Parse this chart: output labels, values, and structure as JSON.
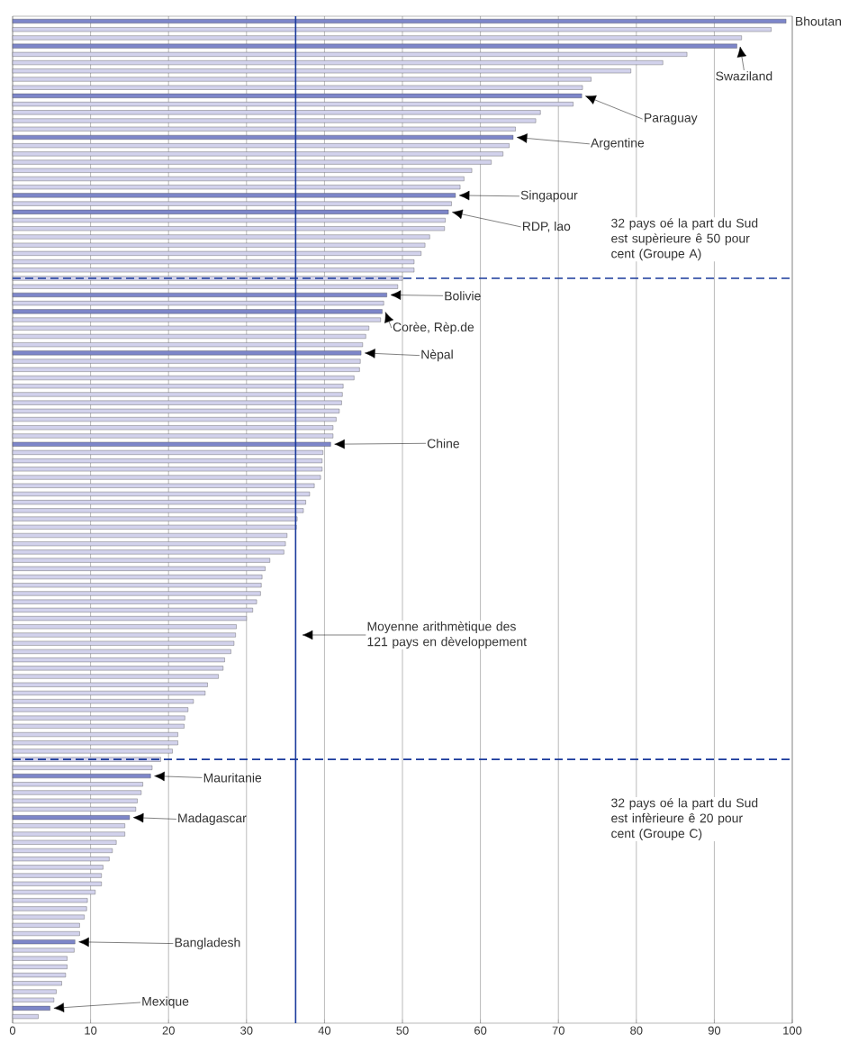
{
  "chart_data": {
    "type": "bar",
    "orientation": "horizontal",
    "tick_labels": "x",
    "grid": "x",
    "categories": [
      null,
      null,
      null,
      null,
      null,
      null,
      null,
      null,
      null,
      null,
      null,
      null,
      null,
      null,
      null,
      null,
      null,
      null,
      null,
      null,
      null,
      null,
      null,
      null,
      null,
      null,
      null,
      null,
      null,
      null,
      null,
      null,
      null,
      null,
      null,
      null,
      null,
      null,
      null,
      null,
      null,
      null,
      null,
      null,
      null,
      null,
      null,
      null,
      null,
      null,
      null,
      null,
      null,
      null,
      null,
      null,
      null,
      null,
      null,
      null,
      null,
      null,
      null,
      null,
      null,
      null,
      null,
      null,
      null,
      null,
      null,
      null,
      null,
      null,
      null,
      null,
      null,
      null,
      null,
      null,
      null,
      null,
      null,
      null,
      null,
      null,
      null,
      null,
      null,
      null,
      null,
      null,
      null,
      null,
      null,
      null,
      null,
      null,
      null,
      null,
      null,
      null,
      null,
      null,
      null,
      null,
      null,
      null,
      null,
      null,
      null,
      null,
      null,
      null,
      null,
      null,
      null,
      null,
      null,
      null,
      null
    ],
    "values": [
      99.2,
      97.3,
      93.5,
      92.9,
      86.5,
      83.4,
      79.3,
      74.2,
      73.1,
      73.0,
      71.9,
      67.7,
      67.1,
      64.5,
      64.2,
      63.7,
      62.9,
      61.4,
      58.9,
      57.9,
      57.4,
      56.8,
      56.3,
      55.9,
      55.5,
      55.4,
      53.5,
      52.9,
      52.4,
      51.5,
      51.5,
      50.0,
      49.4,
      48.0,
      47.6,
      47.4,
      47.2,
      45.7,
      45.3,
      44.9,
      44.7,
      44.6,
      44.5,
      43.8,
      42.4,
      42.3,
      42.2,
      41.9,
      41.5,
      41.1,
      41.1,
      40.8,
      39.8,
      39.7,
      39.7,
      39.5,
      38.7,
      38.1,
      37.6,
      37.3,
      36.5,
      36.4,
      35.2,
      35.0,
      34.8,
      33.0,
      32.4,
      32.0,
      31.9,
      31.8,
      31.3,
      30.8,
      30.0,
      28.7,
      28.6,
      28.4,
      28.0,
      27.2,
      27.0,
      26.4,
      25.0,
      24.7,
      23.2,
      22.5,
      22.1,
      22.0,
      21.2,
      21.2,
      20.5,
      19.0,
      17.9,
      17.7,
      16.7,
      16.5,
      16.0,
      15.8,
      15.0,
      14.4,
      14.4,
      13.3,
      12.8,
      12.4,
      11.6,
      11.4,
      11.4,
      10.6,
      9.6,
      9.5,
      9.2,
      8.6,
      8.6,
      8.0,
      7.9,
      7.0,
      7.0,
      6.8,
      6.3,
      5.6,
      5.3,
      4.8,
      3.3
    ],
    "colors": [
      "#7d86c9",
      "#d2d2ec",
      "#d2d2ec",
      "#7d86c9",
      "#d2d2ec",
      "#d2d2ec",
      "#d2d2ec",
      "#d2d2ec",
      "#d2d2ec",
      "#7d86c9",
      "#d2d2ec",
      "#d2d2ec",
      "#d2d2ec",
      "#d2d2ec",
      "#7d86c9",
      "#d2d2ec",
      "#d2d2ec",
      "#d2d2ec",
      "#d2d2ec",
      "#d2d2ec",
      "#d2d2ec",
      "#7d86c9",
      "#d2d2ec",
      "#7d86c9",
      "#d2d2ec",
      "#d2d2ec",
      "#d2d2ec",
      "#d2d2ec",
      "#d2d2ec",
      "#d2d2ec",
      "#d2d2ec",
      "#d2d2ec",
      "#d2d2ec",
      "#7d86c9",
      "#d2d2ec",
      "#7d86c9",
      "#d2d2ec",
      "#d2d2ec",
      "#d2d2ec",
      "#d2d2ec",
      "#7d86c9",
      "#d2d2ec",
      "#d2d2ec",
      "#d2d2ec",
      "#d2d2ec",
      "#d2d2ec",
      "#d2d2ec",
      "#d2d2ec",
      "#d2d2ec",
      "#d2d2ec",
      "#d2d2ec",
      "#7d86c9",
      "#d2d2ec",
      "#d2d2ec",
      "#d2d2ec",
      "#d2d2ec",
      "#d2d2ec",
      "#d2d2ec",
      "#d2d2ec",
      "#d2d2ec",
      "#d2d2ec",
      "#d2d2ec",
      "#d2d2ec",
      "#d2d2ec",
      "#d2d2ec",
      "#d2d2ec",
      "#d2d2ec",
      "#d2d2ec",
      "#d2d2ec",
      "#d2d2ec",
      "#d2d2ec",
      "#d2d2ec",
      "#d2d2ec",
      "#d2d2ec",
      "#d2d2ec",
      "#d2d2ec",
      "#d2d2ec",
      "#d2d2ec",
      "#d2d2ec",
      "#d2d2ec",
      "#d2d2ec",
      "#d2d2ec",
      "#d2d2ec",
      "#d2d2ec",
      "#d2d2ec",
      "#d2d2ec",
      "#d2d2ec",
      "#d2d2ec",
      "#d2d2ec",
      "#d2d2ec",
      "#d2d2ec",
      "#7d86c9",
      "#d2d2ec",
      "#d2d2ec",
      "#d2d2ec",
      "#d2d2ec",
      "#7d86c9",
      "#d2d2ec",
      "#d2d2ec",
      "#d2d2ec",
      "#d2d2ec",
      "#d2d2ec",
      "#d2d2ec",
      "#d2d2ec",
      "#d2d2ec",
      "#d2d2ec",
      "#d2d2ec",
      "#d2d2ec",
      "#d2d2ec",
      "#d2d2ec",
      "#d2d2ec",
      "#7d86c9",
      "#d2d2ec",
      "#d2d2ec",
      "#d2d2ec",
      "#d2d2ec",
      "#d2d2ec",
      "#d2d2ec",
      "#d2d2ec",
      "#7d86c9",
      "#d2d2ec"
    ],
    "xlim": [
      0,
      100
    ],
    "xticks": [
      0,
      10,
      20,
      30,
      40,
      50,
      60,
      70,
      80,
      90,
      100
    ],
    "ref_lines": [
      {
        "axis": "x",
        "value": 36.3,
        "color": "#1a3a9c",
        "line_style": "solid"
      }
    ],
    "annotations": [
      "Bhoutan",
      "Swaziland",
      "Paraguay",
      "Argentine",
      "Singapour",
      "RDP, lao",
      "Bolivie",
      "Corèe, Rèp.de",
      "Nèpal",
      "Chine",
      "Mauritanie",
      "Madagascar",
      "Bangladesh",
      "Mexique",
      "32 pays oé la part du Sud est supèrieure ê 50 pour cent (Groupe A)",
      "32 pays oé la part du Sud est infèrieure ê 20 pour cent (Groupe C)",
      "Moyenne arithmètique des 121 pays en dèveloppement"
    ]
  }
}
